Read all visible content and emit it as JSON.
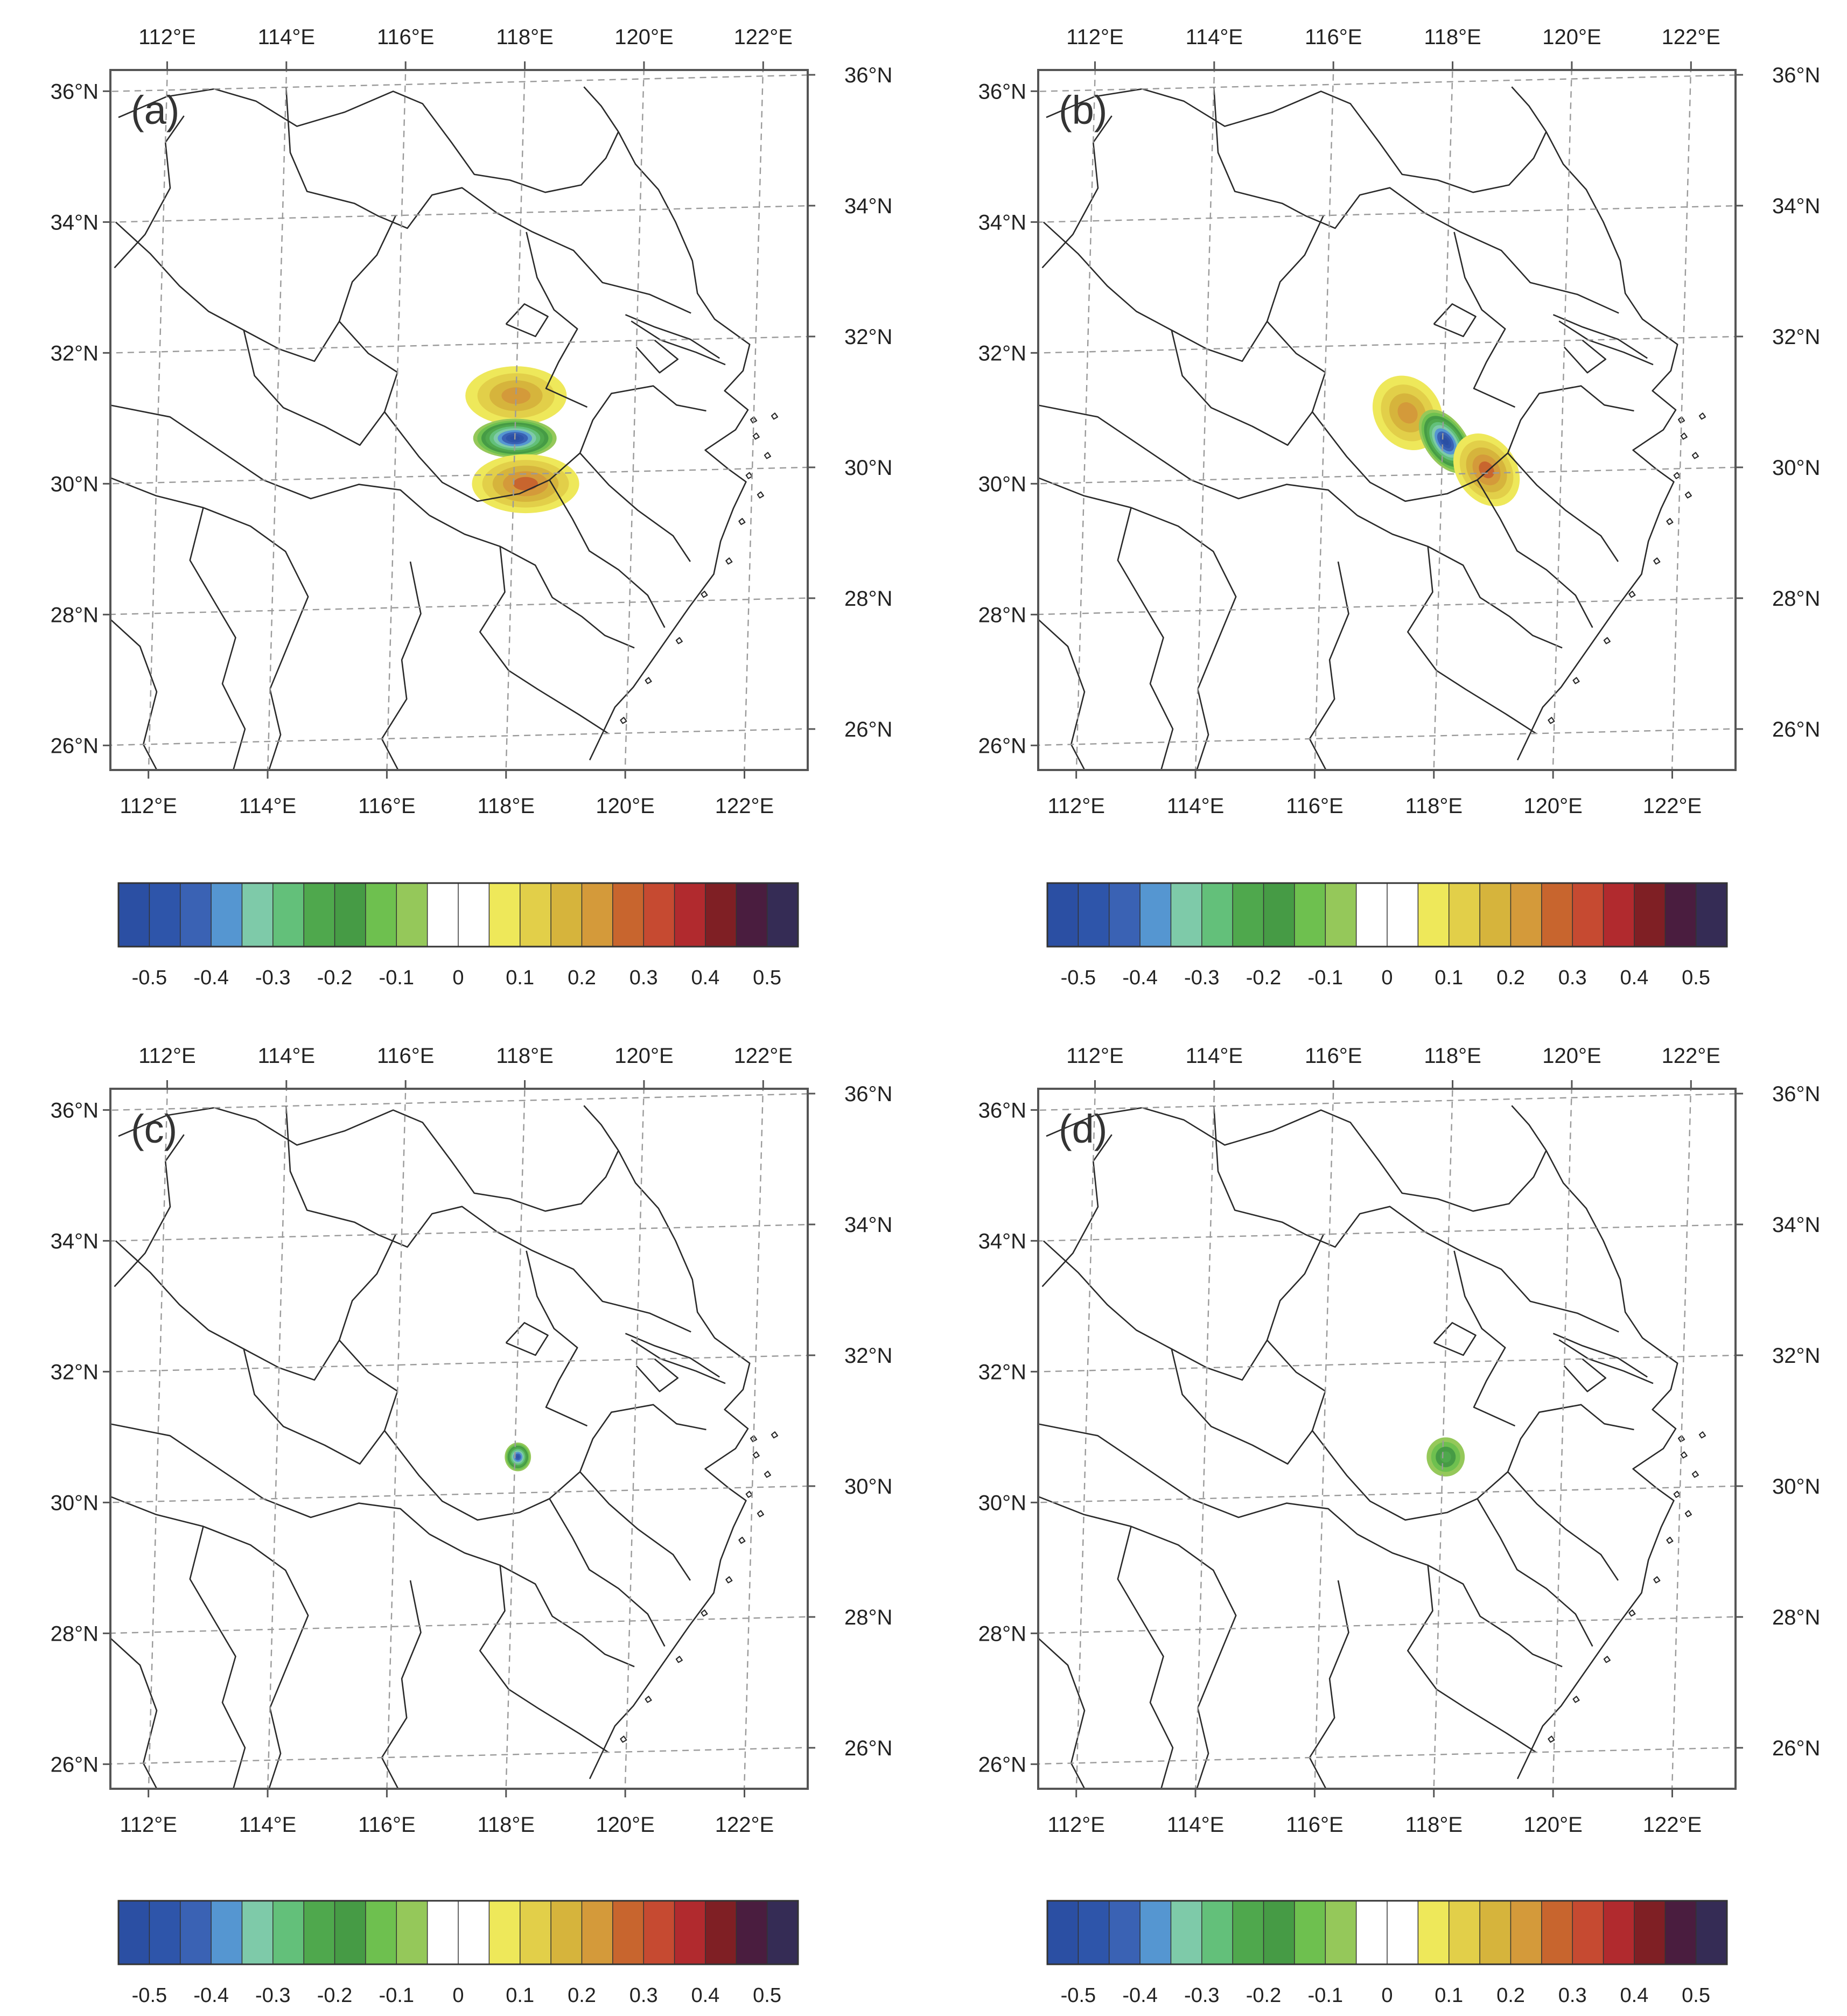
{
  "figure": {
    "colorbar": {
      "colors": [
        "#2b4fa3",
        "#2e55aa",
        "#3a62b4",
        "#5596d1",
        "#7ecaa9",
        "#63c07a",
        "#4fa84d",
        "#469b45",
        "#6ec04f",
        "#95c85a",
        "#ffffff",
        "#ffffff",
        "#eee85a",
        "#e2cf49",
        "#d6b43c",
        "#d49a3a",
        "#c8652e",
        "#c64a31",
        "#b12a2e",
        "#7f1f24",
        "#4a1d3f",
        "#352c55"
      ],
      "tick_labels": [
        "-0.5",
        "-0.4",
        "-0.3",
        "-0.2",
        "-0.1",
        "0",
        "0.1",
        "0.2",
        "0.3",
        "0.4",
        "0.5"
      ],
      "tick_values": [
        -0.5,
        -0.4,
        -0.3,
        -0.2,
        -0.1,
        0,
        0.1,
        0.2,
        0.3,
        0.4,
        0.5
      ]
    },
    "axes": {
      "lon_labels": [
        "112°E",
        "114°E",
        "116°E",
        "118°E",
        "120°E",
        "122°E"
      ],
      "lon_values": [
        112,
        114,
        116,
        118,
        120,
        122
      ],
      "lat_labels": [
        "26°N",
        "28°N",
        "30°N",
        "32°N",
        "34°N",
        "36°N"
      ],
      "lat_values": [
        26,
        28,
        30,
        32,
        34,
        36
      ],
      "lon_range": [
        111.2,
        122.9
      ],
      "lat_range": [
        25.5,
        36.2
      ],
      "grid": true,
      "grid_style": "dashed"
    },
    "panels": [
      {
        "label": "(a)",
        "pattern": "dipole north-south",
        "features": [
          {
            "kind": "positive",
            "lon": 118.0,
            "lat": 31.2,
            "peak": 0.2,
            "extent_lon": 0.85,
            "extent_lat": 0.45
          },
          {
            "kind": "negative",
            "lon": 118.0,
            "lat": 30.55,
            "peak": -0.5,
            "extent_lon": 0.7,
            "extent_lat": 0.3
          },
          {
            "kind": "positive",
            "lon": 118.2,
            "lat": 29.85,
            "peak": 0.25,
            "extent_lon": 0.9,
            "extent_lat": 0.45
          }
        ]
      },
      {
        "label": "(b)",
        "pattern": "dipole northwest-southeast",
        "features": [
          {
            "kind": "positive",
            "lon": 117.4,
            "lat": 30.95,
            "peak": 0.2,
            "extent_lon": 0.55,
            "extent_lat": 0.6
          },
          {
            "kind": "negative",
            "lon": 118.05,
            "lat": 30.5,
            "peak": -0.5,
            "extent_lon": 0.35,
            "extent_lat": 0.55
          },
          {
            "kind": "positive",
            "lon": 118.75,
            "lat": 30.05,
            "peak": 0.25,
            "extent_lon": 0.5,
            "extent_lat": 0.6
          }
        ]
      },
      {
        "label": "(c)",
        "pattern": "small negative center",
        "features": [
          {
            "kind": "negative",
            "lon": 118.05,
            "lat": 30.55,
            "peak": -0.45,
            "extent_lon": 0.22,
            "extent_lat": 0.22
          }
        ]
      },
      {
        "label": "(d)",
        "pattern": "weak negative center",
        "features": [
          {
            "kind": "negative",
            "lon": 118.05,
            "lat": 30.55,
            "peak": -0.2,
            "extent_lon": 0.32,
            "extent_lat": 0.3
          }
        ]
      }
    ]
  }
}
